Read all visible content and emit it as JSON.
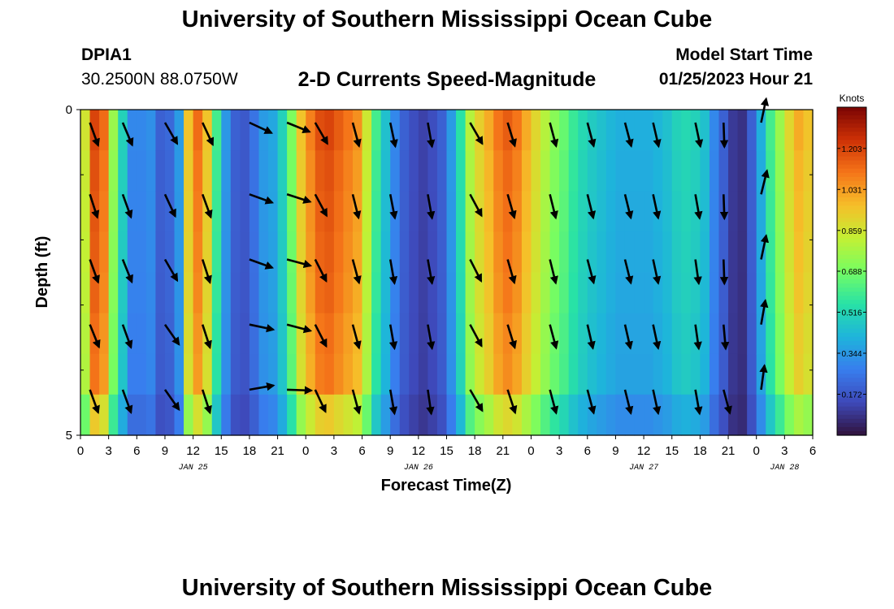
{
  "header": {
    "title": "University of Southern Mississippi Ocean Cube",
    "station": "DPIA1",
    "coords": "30.2500N  88.0750W",
    "subtitle": "2-D Currents Speed-Magnitude",
    "model_start_label": "Model Start Time",
    "model_start_value": "01/25/2023 Hour 21",
    "footer_title": "University of Southern Mississippi Ocean Cube"
  },
  "chart_data": {
    "type": "heatmap",
    "title": "2-D Currents Speed-Magnitude",
    "xlabel": "Forecast Time(Z)",
    "ylabel": "Depth (ft)",
    "xlim": [
      0,
      78
    ],
    "ylim": [
      0,
      5
    ],
    "x_ticks": [
      "0",
      "3",
      "6",
      "9",
      "12",
      "15",
      "18",
      "21",
      "0",
      "3",
      "6",
      "9",
      "12",
      "15",
      "18",
      "21",
      "0",
      "3",
      "6",
      "9",
      "12",
      "15",
      "18",
      "21",
      "0",
      "3",
      "6"
    ],
    "y_ticks": [
      "0",
      "5"
    ],
    "date_labels": [
      {
        "text": "JAN 25",
        "hour": 12
      },
      {
        "text": "JAN 26",
        "hour": 36
      },
      {
        "text": "JAN 27",
        "hour": 60
      },
      {
        "text": "JAN 28",
        "hour": 75
      }
    ],
    "colorbar": {
      "label": "Knots",
      "ticks": [
        "1.203",
        "1.031",
        "0.859",
        "0.688",
        "0.516",
        "0.344",
        "0.172"
      ],
      "min": 0.0,
      "max": 1.376
    },
    "depth_rows": 8,
    "speed_profile": [
      [
        0.5,
        0.86
      ],
      [
        1.5,
        1.2
      ],
      [
        2.5,
        1.12
      ],
      [
        3.5,
        0.75
      ],
      [
        4.5,
        0.5
      ],
      [
        5.5,
        0.3
      ],
      [
        6.5,
        0.3
      ],
      [
        7.5,
        0.32
      ],
      [
        8.5,
        0.2
      ],
      [
        9.5,
        0.22
      ],
      [
        10.5,
        0.35
      ],
      [
        11.5,
        0.95
      ],
      [
        12.5,
        1.12
      ],
      [
        13.5,
        0.95
      ],
      [
        14.5,
        0.6
      ],
      [
        15.5,
        0.34
      ],
      [
        16.5,
        0.2
      ],
      [
        17.5,
        0.18
      ],
      [
        18.5,
        0.25
      ],
      [
        19.5,
        0.35
      ],
      [
        20.5,
        0.38
      ],
      [
        21.5,
        0.5
      ],
      [
        22.5,
        0.7
      ],
      [
        23.5,
        0.95
      ],
      [
        24.5,
        1.08
      ],
      [
        25.5,
        1.18
      ],
      [
        26.5,
        1.2
      ],
      [
        27.5,
        1.15
      ],
      [
        28.5,
        1.1
      ],
      [
        29.5,
        1.05
      ],
      [
        30.5,
        0.85
      ],
      [
        31.5,
        0.6
      ],
      [
        32.5,
        0.45
      ],
      [
        33.5,
        0.3
      ],
      [
        34.5,
        0.2
      ],
      [
        35.5,
        0.15
      ],
      [
        36.5,
        0.12
      ],
      [
        37.5,
        0.15
      ],
      [
        38.5,
        0.2
      ],
      [
        39.5,
        0.35
      ],
      [
        40.5,
        0.55
      ],
      [
        41.5,
        0.8
      ],
      [
        42.5,
        0.92
      ],
      [
        43.5,
        1.0
      ],
      [
        44.5,
        1.1
      ],
      [
        45.5,
        1.15
      ],
      [
        46.5,
        1.1
      ],
      [
        47.5,
        1.0
      ],
      [
        48.5,
        0.9
      ],
      [
        49.5,
        0.8
      ],
      [
        50.5,
        0.72
      ],
      [
        51.5,
        0.66
      ],
      [
        52.5,
        0.58
      ],
      [
        53.5,
        0.52
      ],
      [
        54.5,
        0.48
      ],
      [
        55.5,
        0.45
      ],
      [
        56.5,
        0.42
      ],
      [
        57.5,
        0.4
      ],
      [
        58.5,
        0.4
      ],
      [
        59.5,
        0.4
      ],
      [
        60.5,
        0.4
      ],
      [
        61.5,
        0.42
      ],
      [
        62.5,
        0.45
      ],
      [
        63.5,
        0.5
      ],
      [
        64.5,
        0.52
      ],
      [
        65.5,
        0.5
      ],
      [
        66.5,
        0.45
      ],
      [
        67.5,
        0.3
      ],
      [
        68.5,
        0.2
      ],
      [
        69.5,
        0.1
      ],
      [
        70.5,
        0.08
      ],
      [
        71.5,
        0.2
      ],
      [
        72.5,
        0.4
      ],
      [
        73.5,
        0.6
      ],
      [
        74.5,
        0.75
      ],
      [
        75.5,
        0.9
      ],
      [
        76.5,
        1.0
      ],
      [
        77.5,
        0.95
      ]
    ],
    "depth_factors": [
      1.0,
      0.98,
      0.97,
      0.96,
      0.95,
      0.93,
      0.92,
      0.78
    ],
    "vector_columns_hours": [
      1,
      4.5,
      9,
      13,
      18,
      22,
      25,
      29,
      33,
      37,
      41.5,
      45.5,
      50,
      54,
      58,
      61,
      65.5,
      68.5,
      72.5
    ],
    "vector_depths": [
      0.2,
      1.3,
      2.3,
      3.3,
      4.3
    ],
    "vector_angles_deg": [
      [
        70,
        67,
        60,
        65,
        25,
        22,
        60,
        75,
        78,
        80,
        60,
        73,
        75,
        75,
        75,
        77,
        78,
        88,
        -78
      ],
      [
        72,
        70,
        65,
        70,
        20,
        18,
        62,
        76,
        79,
        80,
        62,
        74,
        76,
        76,
        76,
        78,
        80,
        88,
        -76
      ],
      [
        70,
        68,
        60,
        72,
        20,
        15,
        63,
        75,
        80,
        80,
        63,
        74,
        76,
        75,
        76,
        78,
        82,
        88,
        -78
      ],
      [
        68,
        70,
        55,
        72,
        12,
        15,
        63,
        75,
        80,
        80,
        62,
        73,
        75,
        77,
        77,
        78,
        82,
        85,
        -80
      ],
      [
        70,
        70,
        55,
        72,
        -10,
        2,
        65,
        75,
        80,
        82,
        60,
        72,
        75,
        75,
        76,
        78,
        80,
        75,
        -82
      ]
    ]
  }
}
